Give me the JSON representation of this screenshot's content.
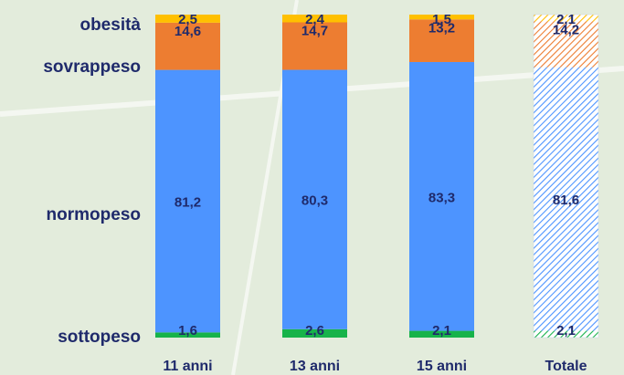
{
  "chart_data": {
    "type": "bar",
    "stacked": true,
    "normalized_percent": true,
    "categories": [
      "11 anni",
      "13 anni",
      "15 anni",
      "Totale"
    ],
    "series": [
      {
        "name": "sottopeso",
        "values": [
          1.6,
          2.6,
          2.1,
          2.1
        ],
        "labels": [
          "1,6",
          "2,6",
          "2,1",
          "2,1"
        ],
        "color": "#17b34a"
      },
      {
        "name": "normopeso",
        "values": [
          81.2,
          80.3,
          83.3,
          81.6
        ],
        "labels": [
          "81,2",
          "80,3",
          "83,3",
          "81,6"
        ],
        "color": "#4d94ff"
      },
      {
        "name": "sovrappeso",
        "values": [
          14.6,
          14.7,
          13.2,
          14.2
        ],
        "labels": [
          "14,6",
          "14,7",
          "13,2",
          "14,2"
        ],
        "color": "#ed7d31"
      },
      {
        "name": "obesità",
        "values": [
          2.5,
          2.4,
          1.5,
          2.1
        ],
        "labels": [
          "2,5",
          "2,4",
          "1,5",
          "2,1"
        ],
        "color": "#ffc000"
      }
    ],
    "hatched_category": "Totale",
    "ylim": [
      0,
      100
    ],
    "grid": false,
    "legend": "left"
  }
}
